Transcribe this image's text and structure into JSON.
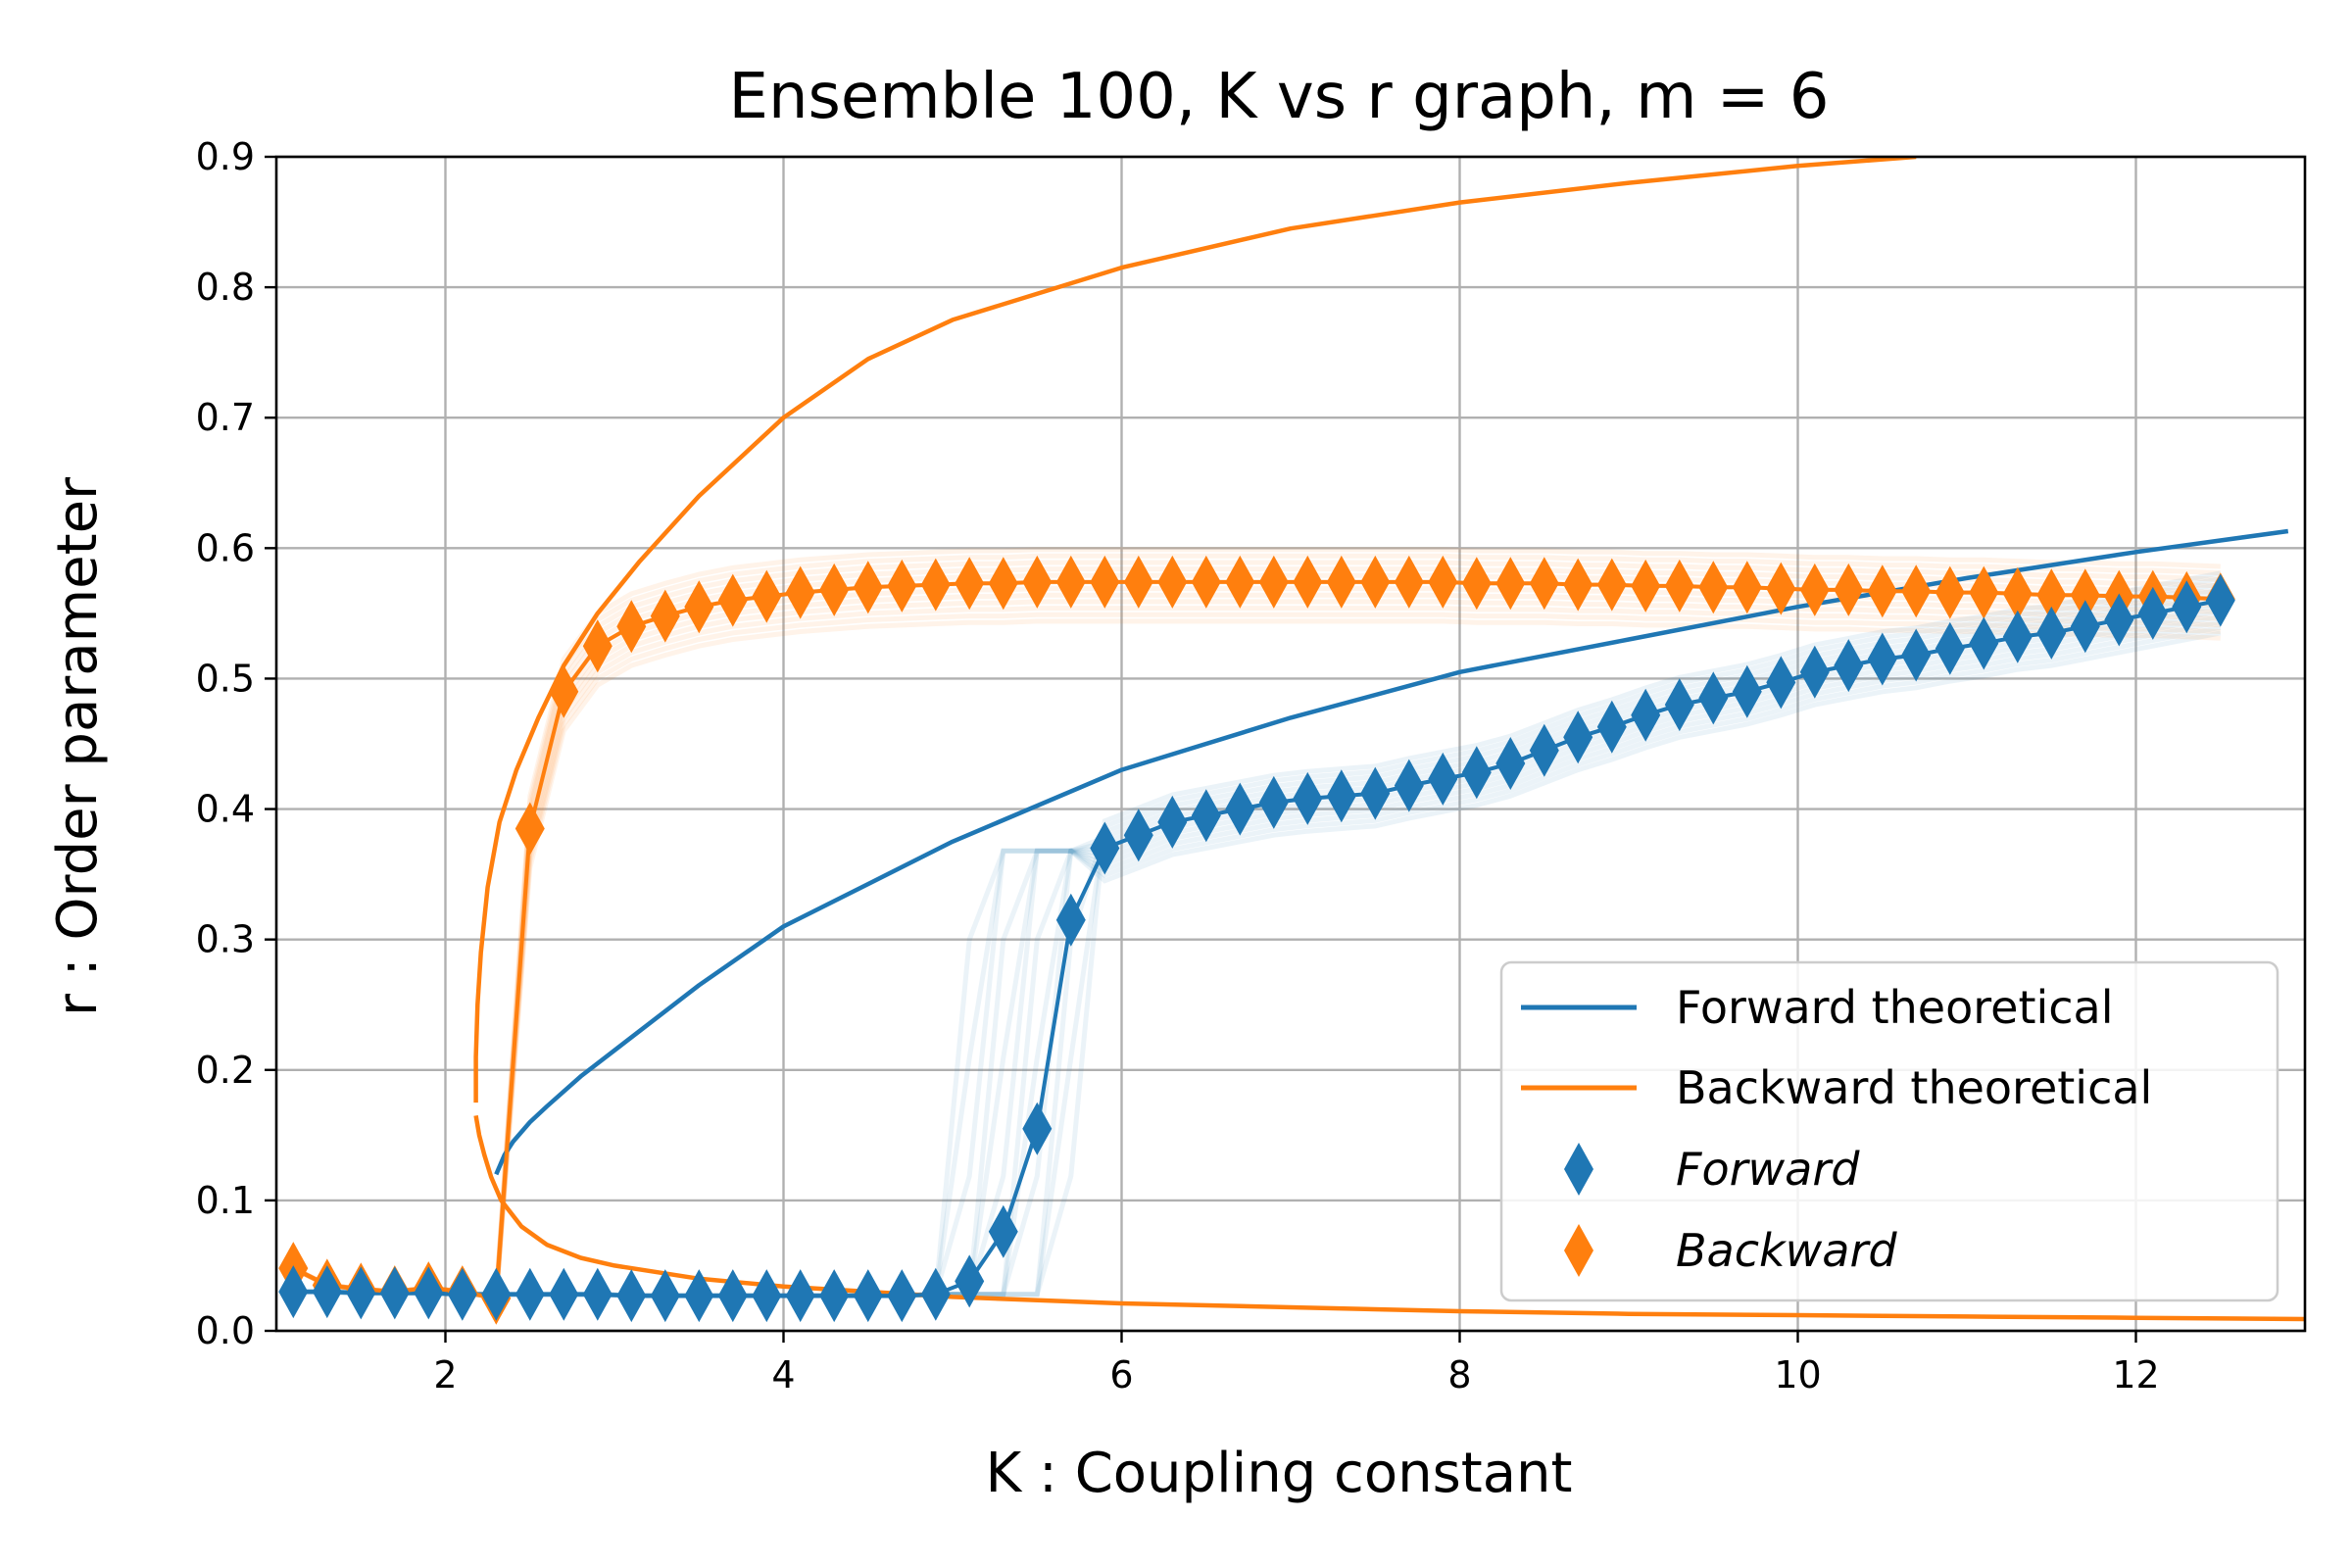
{
  "chart_data": {
    "type": "line",
    "title": "Ensemble 100, K vs r graph, m = 6",
    "xlabel": "K : Coupling constant",
    "ylabel": "r : Order parameter",
    "xlim": [
      1.0,
      13.0
    ],
    "ylim": [
      0.0,
      0.9
    ],
    "xticks": [
      "2",
      "4",
      "6",
      "8",
      "10",
      "12"
    ],
    "yticks": [
      "0.0",
      "0.1",
      "0.2",
      "0.3",
      "0.4",
      "0.5",
      "0.6",
      "0.7",
      "0.8",
      "0.9"
    ],
    "grid": true,
    "legend_position": "lower-right",
    "colors": {
      "forward": "#1f77b4",
      "backward": "#ff7f0e"
    },
    "series": [
      {
        "name": "Forward theoretical",
        "kind": "line",
        "x": [
          2.3,
          2.35,
          2.4,
          2.5,
          2.6,
          2.8,
          3.0,
          3.5,
          4.0,
          5.0,
          6.0,
          7.0,
          8.0,
          9.0,
          10.0,
          11.0,
          12.0,
          12.9
        ],
        "y": [
          0.12,
          0.135,
          0.145,
          0.16,
          0.172,
          0.195,
          0.215,
          0.265,
          0.31,
          0.375,
          0.43,
          0.47,
          0.505,
          0.53,
          0.555,
          0.577,
          0.597,
          0.613
        ]
      },
      {
        "name": "Backward theoretical",
        "kind": "line",
        "x": [
          2.18,
          2.18,
          2.19,
          2.21,
          2.25,
          2.32,
          2.42,
          2.55,
          2.7,
          2.9,
          3.15,
          3.5,
          4.0,
          4.5,
          5.0,
          6.0,
          7.0,
          8.0,
          9.0,
          10.0,
          10.7
        ],
        "y": [
          0.175,
          0.21,
          0.25,
          0.29,
          0.34,
          0.39,
          0.43,
          0.47,
          0.51,
          0.55,
          0.59,
          0.64,
          0.7,
          0.745,
          0.775,
          0.815,
          0.845,
          0.865,
          0.88,
          0.893,
          0.9
        ]
      },
      {
        "name": "",
        "kind": "line",
        "x": [
          2.18,
          2.2,
          2.23,
          2.27,
          2.33,
          2.45,
          2.6,
          2.8,
          3.0,
          3.5,
          4.0,
          5.0,
          6.0,
          7.0,
          8.0,
          9.0,
          10.0,
          11.0,
          12.0,
          13.0
        ],
        "y": [
          0.165,
          0.15,
          0.135,
          0.118,
          0.1,
          0.08,
          0.066,
          0.056,
          0.05,
          0.04,
          0.034,
          0.026,
          0.021,
          0.018,
          0.015,
          0.013,
          0.012,
          0.011,
          0.01,
          0.009
        ]
      },
      {
        "name": "Forward",
        "kind": "markers",
        "x": [
          1.1,
          1.3,
          1.5,
          1.7,
          1.9,
          2.1,
          2.3,
          2.5,
          2.7,
          2.9,
          3.1,
          3.3,
          3.5,
          3.7,
          3.9,
          4.1,
          4.3,
          4.5,
          4.7,
          4.9,
          5.1,
          5.3,
          5.5,
          5.7,
          5.9,
          6.1,
          6.3,
          6.5,
          6.7,
          6.9,
          7.1,
          7.3,
          7.5,
          7.7,
          7.9,
          8.1,
          8.3,
          8.5,
          8.7,
          8.9,
          9.1,
          9.3,
          9.5,
          9.7,
          9.9,
          10.1,
          10.3,
          10.5,
          10.7,
          10.9,
          11.1,
          11.3,
          11.5,
          11.7,
          11.9,
          12.1,
          12.3,
          12.5
        ],
        "y": [
          0.03,
          0.03,
          0.029,
          0.029,
          0.029,
          0.028,
          0.028,
          0.028,
          0.028,
          0.028,
          0.027,
          0.027,
          0.027,
          0.027,
          0.027,
          0.027,
          0.027,
          0.027,
          0.027,
          0.028,
          0.038,
          0.076,
          0.155,
          0.315,
          0.37,
          0.38,
          0.39,
          0.395,
          0.4,
          0.405,
          0.408,
          0.41,
          0.412,
          0.418,
          0.423,
          0.428,
          0.435,
          0.445,
          0.455,
          0.463,
          0.472,
          0.48,
          0.485,
          0.49,
          0.497,
          0.505,
          0.51,
          0.515,
          0.518,
          0.523,
          0.527,
          0.532,
          0.535,
          0.54,
          0.545,
          0.55,
          0.555,
          0.56
        ]
      },
      {
        "name": "Backward",
        "kind": "markers",
        "x": [
          1.1,
          1.3,
          1.5,
          1.7,
          1.9,
          2.1,
          2.3,
          2.5,
          2.7,
          2.9,
          3.1,
          3.3,
          3.5,
          3.7,
          3.9,
          4.1,
          4.3,
          4.5,
          4.7,
          4.9,
          5.1,
          5.3,
          5.5,
          5.7,
          5.9,
          6.1,
          6.3,
          6.5,
          6.7,
          6.9,
          7.1,
          7.3,
          7.5,
          7.7,
          7.9,
          8.1,
          8.3,
          8.5,
          8.7,
          8.9,
          9.1,
          9.3,
          9.5,
          9.7,
          9.9,
          10.1,
          10.3,
          10.5,
          10.7,
          10.9,
          11.1,
          11.3,
          11.5,
          11.7,
          11.9,
          12.1,
          12.3,
          12.5
        ],
        "y": [
          0.048,
          0.035,
          0.032,
          0.03,
          0.033,
          0.03,
          0.025,
          0.385,
          0.49,
          0.525,
          0.54,
          0.548,
          0.555,
          0.56,
          0.563,
          0.566,
          0.568,
          0.57,
          0.571,
          0.572,
          0.573,
          0.573,
          0.574,
          0.574,
          0.574,
          0.574,
          0.574,
          0.574,
          0.574,
          0.574,
          0.574,
          0.574,
          0.574,
          0.574,
          0.574,
          0.573,
          0.573,
          0.573,
          0.572,
          0.572,
          0.571,
          0.571,
          0.57,
          0.57,
          0.569,
          0.568,
          0.568,
          0.567,
          0.567,
          0.566,
          0.566,
          0.565,
          0.564,
          0.564,
          0.563,
          0.563,
          0.562,
          0.561
        ]
      }
    ]
  }
}
